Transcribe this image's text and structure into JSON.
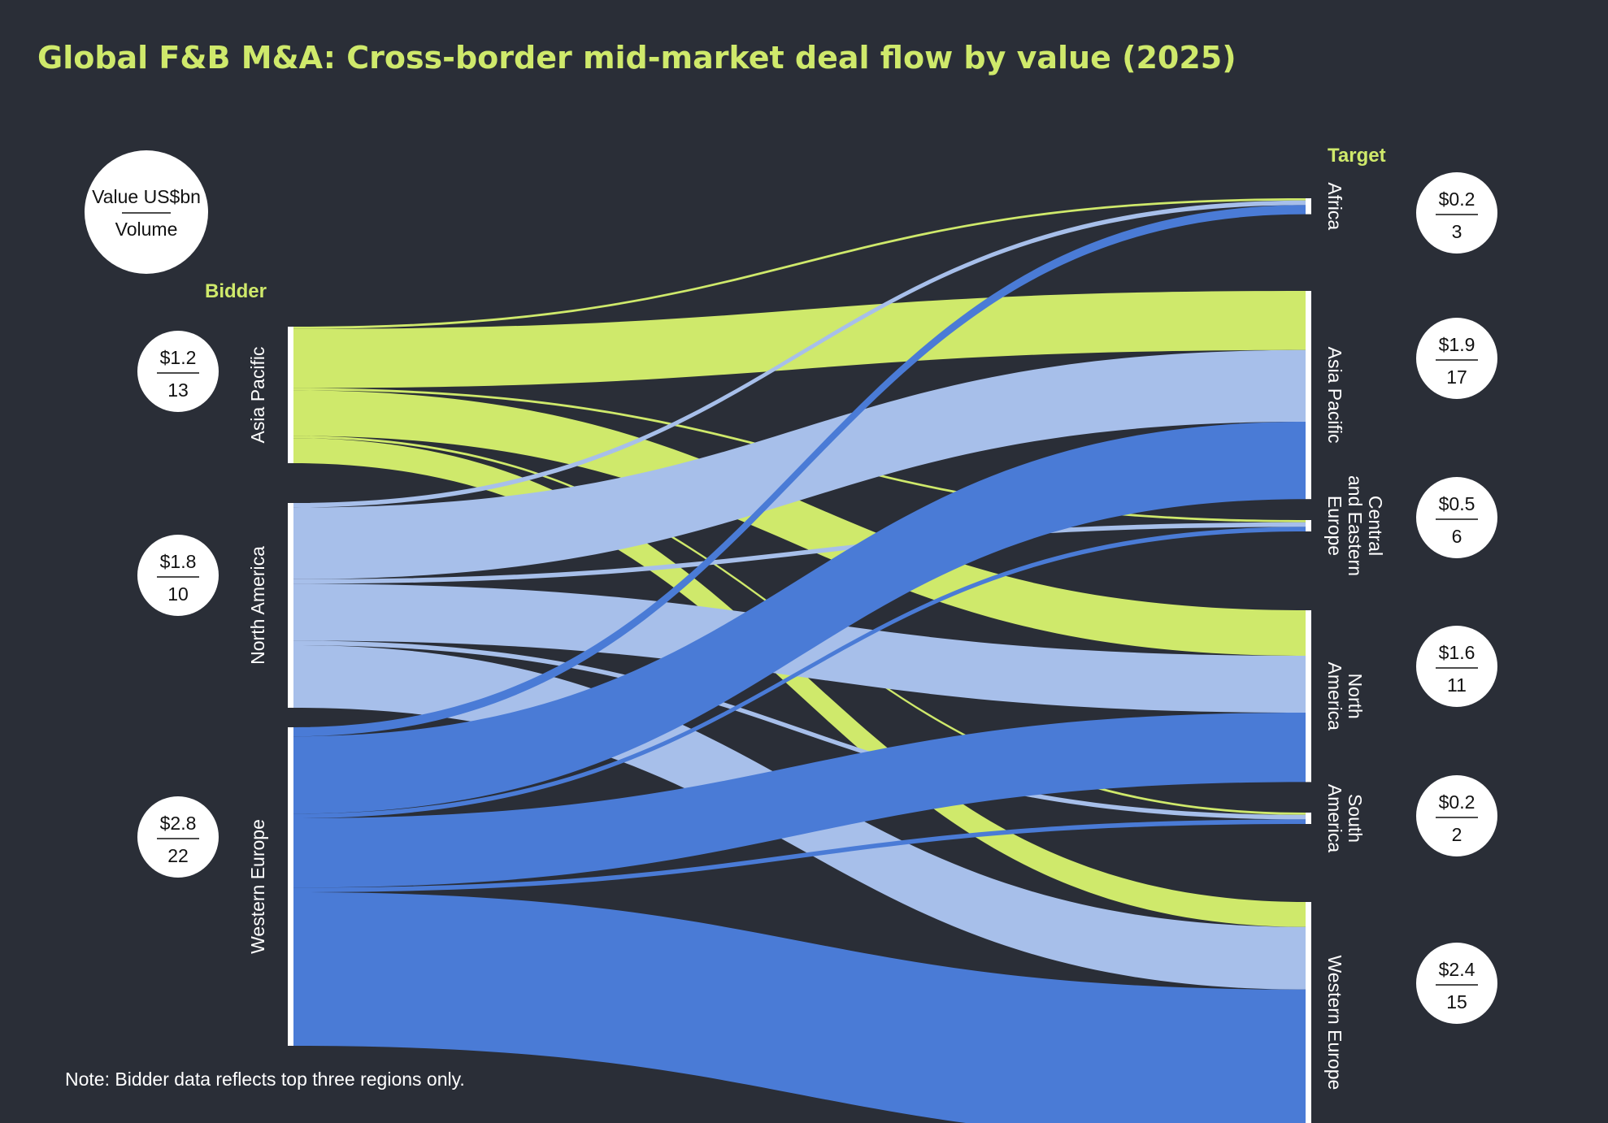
{
  "title": "Global F&B M&A: Cross-border mid-market deal flow by value (2025)",
  "legend": {
    "value_label": "Value US$bn",
    "volume_label": "Volume"
  },
  "bidder_heading": "Bidder",
  "target_heading": "Target",
  "note": "Note: Bidder data reflects top three regions only.",
  "colors": {
    "background": "#2a2e37",
    "title": "#cfe96b",
    "asia_pacific": "#cfe96b",
    "north_america": "#a7bfea",
    "western_europe": "#4a7bd6"
  },
  "chart_data": {
    "type": "sankey",
    "title": "Global F&B M&A: Cross-border mid-market deal flow by value (2025)",
    "unit": "US$bn",
    "bidders": [
      {
        "id": "AP",
        "name": "Asia Pacific",
        "value_label": "$1.2",
        "volume": "13",
        "value": 1.2
      },
      {
        "id": "NA",
        "name": "North America",
        "value_label": "$1.8",
        "volume": "10",
        "value": 1.8
      },
      {
        "id": "WE",
        "name": "Western Europe",
        "value_label": "$2.8",
        "volume": "22",
        "value": 2.8
      }
    ],
    "targets": [
      {
        "id": "AF",
        "name": "Africa",
        "lines": [
          "Africa"
        ],
        "value_label": "$0.2",
        "volume": "3",
        "value": 0.2
      },
      {
        "id": "AP",
        "name": "Asia Pacific",
        "lines": [
          "Asia Pacific"
        ],
        "value_label": "$1.9",
        "volume": "17",
        "value": 1.9
      },
      {
        "id": "CEE",
        "name": "Central and Eastern Europe",
        "lines": [
          "Central",
          "and Eastern",
          "Europe"
        ],
        "value_label": "$0.5",
        "volume": "6",
        "value": 0.5
      },
      {
        "id": "NA",
        "name": "North America",
        "lines": [
          "North",
          "America"
        ],
        "value_label": "$1.6",
        "volume": "11",
        "value": 1.6
      },
      {
        "id": "SA",
        "name": "South America",
        "lines": [
          "South",
          "America"
        ],
        "value_label": "$0.2",
        "volume": "2",
        "value": 0.2
      },
      {
        "id": "WE",
        "name": "Western Europe",
        "lines": [
          "Western Europe"
        ],
        "value_label": "$2.4",
        "volume": "15",
        "value": 2.4
      }
    ],
    "flows": [
      {
        "from": "AP",
        "to": "AF",
        "value": 0.02
      },
      {
        "from": "AP",
        "to": "AP",
        "value": 0.52
      },
      {
        "from": "AP",
        "to": "CEE",
        "value": 0.02
      },
      {
        "from": "AP",
        "to": "NA",
        "value": 0.4
      },
      {
        "from": "AP",
        "to": "SA",
        "value": 0.02
      },
      {
        "from": "AP",
        "to": "WE",
        "value": 0.22
      },
      {
        "from": "NA",
        "to": "AF",
        "value": 0.04
      },
      {
        "from": "NA",
        "to": "AP",
        "value": 0.63
      },
      {
        "from": "NA",
        "to": "CEE",
        "value": 0.04
      },
      {
        "from": "NA",
        "to": "NA",
        "value": 0.5
      },
      {
        "from": "NA",
        "to": "SA",
        "value": 0.04
      },
      {
        "from": "NA",
        "to": "WE",
        "value": 0.55
      },
      {
        "from": "WE",
        "to": "AF",
        "value": 0.08
      },
      {
        "from": "WE",
        "to": "AP",
        "value": 0.68
      },
      {
        "from": "WE",
        "to": "CEE",
        "value": 0.04
      },
      {
        "from": "WE",
        "to": "NA",
        "value": 0.61
      },
      {
        "from": "WE",
        "to": "SA",
        "value": 0.04
      },
      {
        "from": "WE",
        "to": "WE",
        "value": 1.35
      }
    ]
  }
}
